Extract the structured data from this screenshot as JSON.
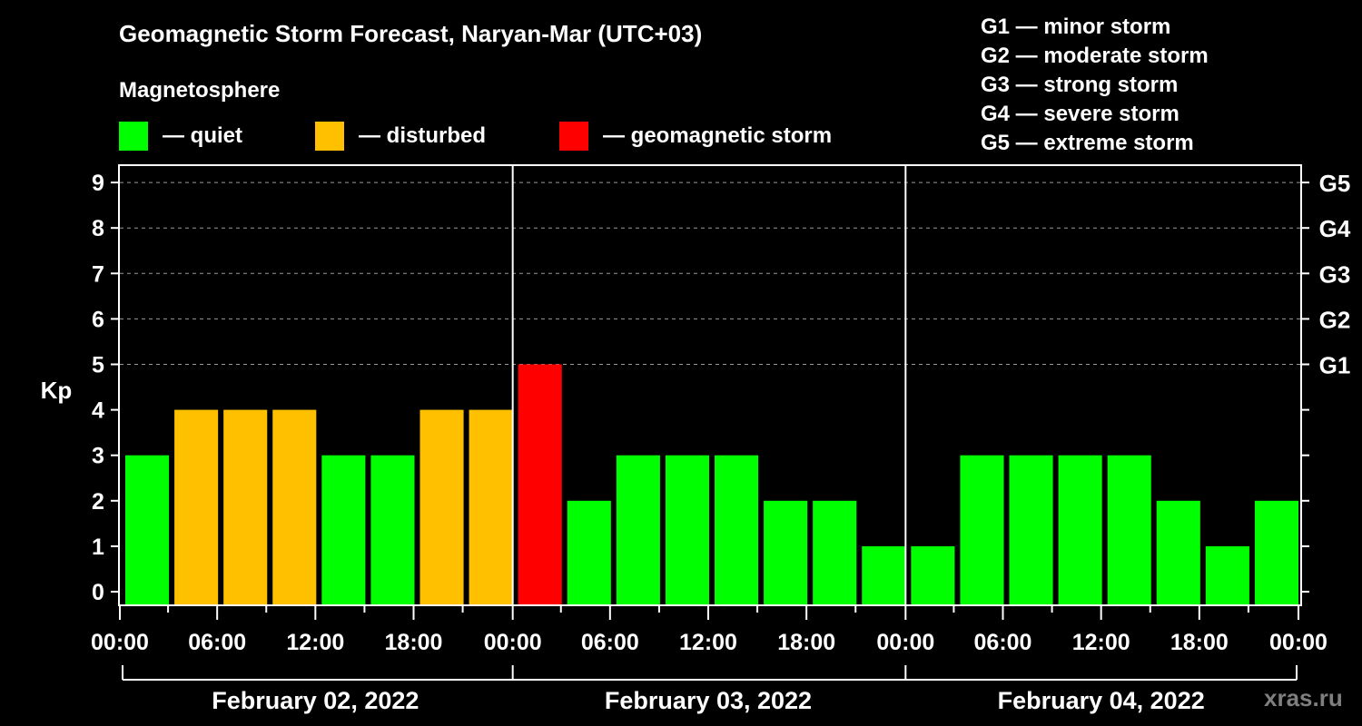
{
  "header": {
    "title": "Geomagnetic Storm Forecast, Naryan-Mar (UTC+03)",
    "subtitle": "Magnetosphere"
  },
  "legend": [
    {
      "label": "— quiet",
      "color": "#00ff00"
    },
    {
      "label": "— disturbed",
      "color": "#ffc000"
    },
    {
      "label": "— geomagnetic storm",
      "color": "#ff0000"
    }
  ],
  "g_scale_legend": [
    "G1 — minor storm",
    "G2 — moderate storm",
    "G3 — strong storm",
    "G4 — severe storm",
    "G5 — extreme storm"
  ],
  "watermark": "xras.ru",
  "chart_data": {
    "type": "bar",
    "title": "Geomagnetic Storm Forecast, Naryan-Mar (UTC+03)",
    "ylabel": "Kp",
    "xlabel": "",
    "ylim": [
      0,
      9
    ],
    "yticks": [
      0,
      1,
      2,
      3,
      4,
      5,
      6,
      7,
      8,
      9
    ],
    "right_axis_labels": [
      {
        "kp": 5,
        "label": "G1"
      },
      {
        "kp": 6,
        "label": "G2"
      },
      {
        "kp": 7,
        "label": "G3"
      },
      {
        "kp": 8,
        "label": "G4"
      },
      {
        "kp": 9,
        "label": "G5"
      }
    ],
    "grid": "dashed horizontal at Kp 5-9",
    "x_tick_labels": [
      "00:00",
      "06:00",
      "12:00",
      "18:00",
      "00:00",
      "06:00",
      "12:00",
      "18:00",
      "00:00",
      "06:00",
      "12:00",
      "18:00",
      "00:00"
    ],
    "days": [
      "February 02, 2022",
      "February 03, 2022",
      "February 04, 2022"
    ],
    "categories": [
      "02 00-03",
      "02 03-06",
      "02 06-09",
      "02 09-12",
      "02 12-15",
      "02 15-18",
      "02 18-21",
      "02 21-24",
      "03 00-03",
      "03 03-06",
      "03 06-09",
      "03 09-12",
      "03 12-15",
      "03 15-18",
      "03 18-21",
      "03 21-24",
      "04 00-03",
      "04 03-06",
      "04 06-09",
      "04 09-12",
      "04 12-15",
      "04 15-18",
      "04 18-21",
      "04 21-24"
    ],
    "values": [
      3,
      4,
      4,
      4,
      3,
      3,
      4,
      4,
      5,
      2,
      3,
      3,
      3,
      2,
      2,
      1,
      1,
      3,
      3,
      3,
      3,
      2,
      1,
      2
    ],
    "status": [
      "quiet",
      "disturbed",
      "disturbed",
      "disturbed",
      "quiet",
      "quiet",
      "disturbed",
      "disturbed",
      "storm",
      "quiet",
      "quiet",
      "quiet",
      "quiet",
      "quiet",
      "quiet",
      "quiet",
      "quiet",
      "quiet",
      "quiet",
      "quiet",
      "quiet",
      "quiet",
      "quiet",
      "quiet"
    ],
    "colors": {
      "quiet": "#00ff00",
      "disturbed": "#ffc000",
      "storm": "#ff0000"
    },
    "legend_position": "top"
  }
}
